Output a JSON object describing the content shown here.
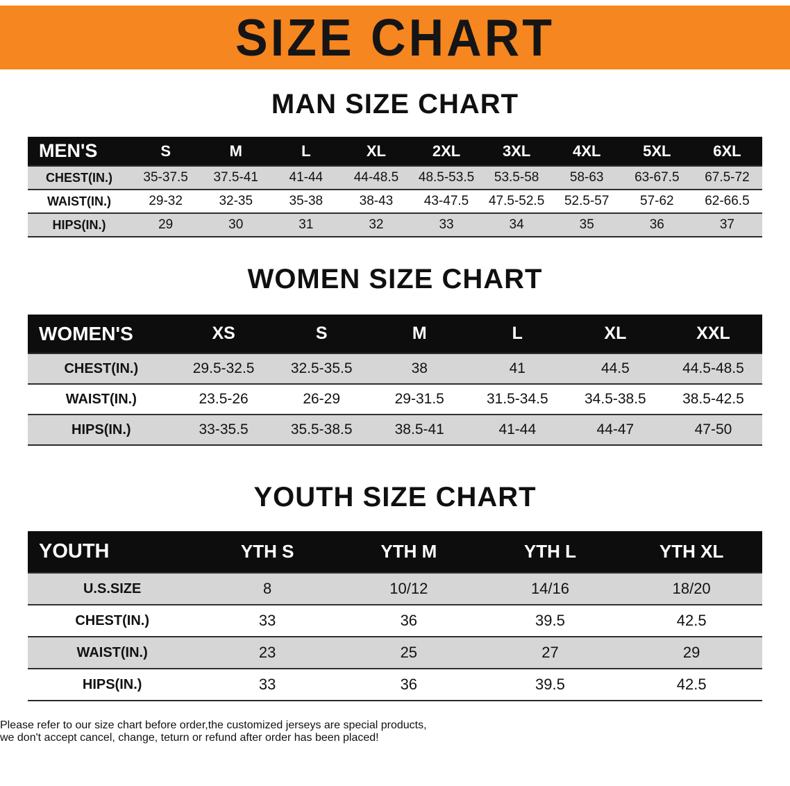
{
  "banner": {
    "title": "SIZE CHART"
  },
  "colors": {
    "banner_orange": "#F6861F",
    "header_black": "#0d0d0d",
    "row_gray": "#d6d6d6",
    "disclaimer_red": "#d01111"
  },
  "sections": [
    {
      "title": "MAN SIZE CHART",
      "table": {
        "header": [
          "MEN'S",
          "S",
          "M",
          "L",
          "XL",
          "2XL",
          "3XL",
          "4XL",
          "5XL",
          "6XL"
        ],
        "rows": [
          [
            "CHEST(IN.)",
            "35-37.5",
            "37.5-41",
            "41-44",
            "44-48.5",
            "48.5-53.5",
            "53.5-58",
            "58-63",
            "63-67.5",
            "67.5-72"
          ],
          [
            "WAIST(IN.)",
            "29-32",
            "32-35",
            "35-38",
            "38-43",
            "43-47.5",
            "47.5-52.5",
            "52.5-57",
            "57-62",
            "62-66.5"
          ],
          [
            "HIPS(IN.)",
            "29",
            "30",
            "31",
            "32",
            "33",
            "34",
            "35",
            "36",
            "37"
          ]
        ]
      }
    },
    {
      "title": "WOMEN SIZE CHART",
      "table": {
        "header": [
          "WOMEN'S",
          "XS",
          "S",
          "M",
          "L",
          "XL",
          "XXL"
        ],
        "rows": [
          [
            "CHEST(IN.)",
            "29.5-32.5",
            "32.5-35.5",
            "38",
            "41",
            "44.5",
            "44.5-48.5"
          ],
          [
            "WAIST(IN.)",
            "23.5-26",
            "26-29",
            "29-31.5",
            "31.5-34.5",
            "34.5-38.5",
            "38.5-42.5"
          ],
          [
            "HIPS(IN.)",
            "33-35.5",
            "35.5-38.5",
            "38.5-41",
            "41-44",
            "44-47",
            "47-50"
          ]
        ]
      }
    },
    {
      "title": "YOUTH SIZE CHART",
      "table": {
        "header": [
          "YOUTH",
          "YTH S",
          "YTH M",
          "YTH L",
          "YTH XL"
        ],
        "rows": [
          [
            "U.S.SIZE",
            "8",
            "10/12",
            "14/16",
            "18/20"
          ],
          [
            "CHEST(IN.)",
            "33",
            "36",
            "39.5",
            "42.5"
          ],
          [
            "WAIST(IN.)",
            "23",
            "25",
            "27",
            "29"
          ],
          [
            "HIPS(IN.)",
            "33",
            "36",
            "39.5",
            "42.5"
          ]
        ]
      }
    }
  ],
  "footer": {
    "line1": "Please refer to our size chart before order,the customized jerseys are special products,",
    "line2": "we don't accept cancel, change, teturn or refund after order has been placed!"
  }
}
